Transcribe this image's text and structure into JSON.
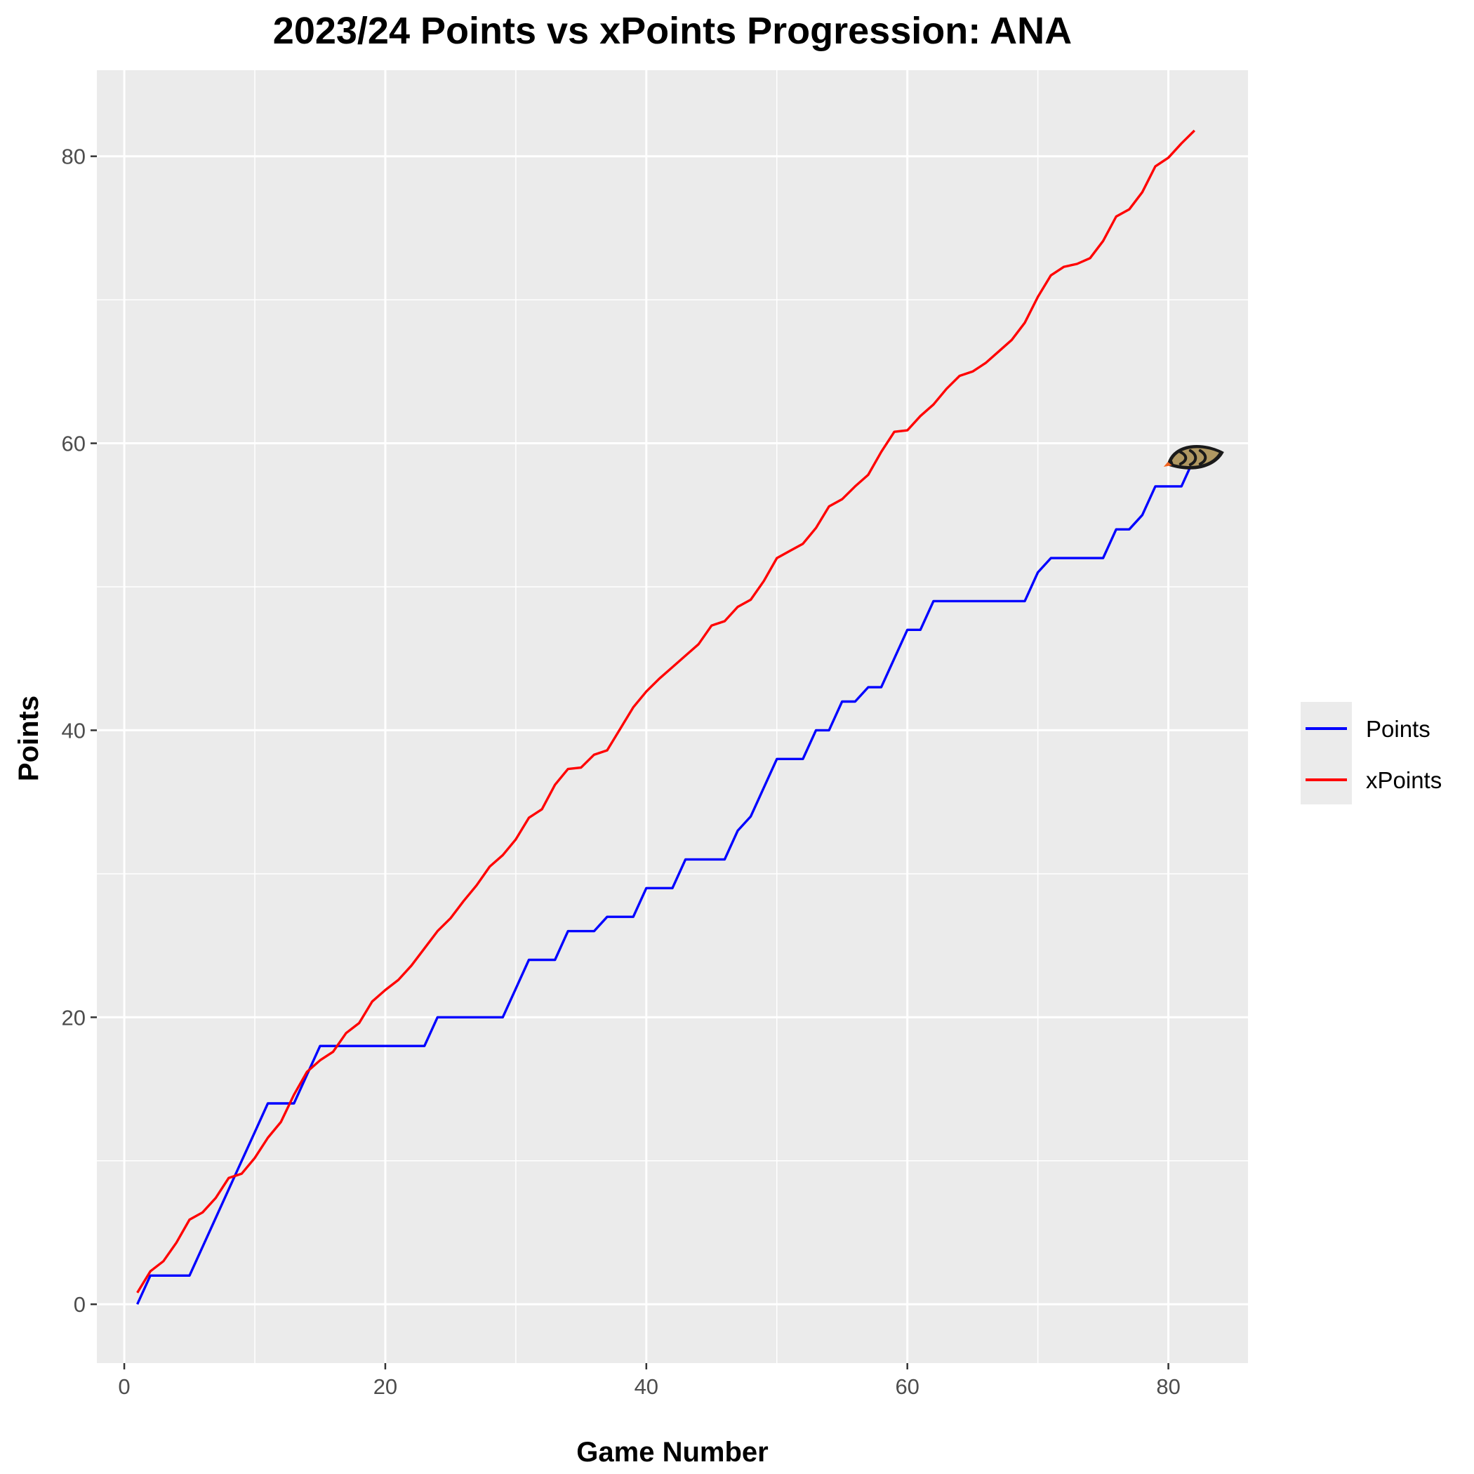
{
  "chart_data": {
    "type": "line",
    "title": "2023/24 Points vs xPoints Progression: ANA",
    "xlabel": "Game Number",
    "ylabel": "Points",
    "xlim": [
      -2.1,
      86.1
    ],
    "ylim": [
      -4.1,
      86.0
    ],
    "x_ticks": [
      0,
      20,
      40,
      60,
      80
    ],
    "y_ticks": [
      0,
      20,
      40,
      60,
      80
    ],
    "x_tick_labels": [
      "0",
      "20",
      "40",
      "60",
      "80"
    ],
    "y_tick_labels": [
      "0",
      "20",
      "40",
      "60",
      "80"
    ],
    "grid": true,
    "legend_position": "right",
    "logo": "anaheim-ducks-logo",
    "x": [
      1,
      2,
      3,
      4,
      5,
      6,
      7,
      8,
      9,
      10,
      11,
      12,
      13,
      14,
      15,
      16,
      17,
      18,
      19,
      20,
      21,
      22,
      23,
      24,
      25,
      26,
      27,
      28,
      29,
      30,
      31,
      32,
      33,
      34,
      35,
      36,
      37,
      38,
      39,
      40,
      41,
      42,
      43,
      44,
      45,
      46,
      47,
      48,
      49,
      50,
      51,
      52,
      53,
      54,
      55,
      56,
      57,
      58,
      59,
      60,
      61,
      62,
      63,
      64,
      65,
      66,
      67,
      68,
      69,
      70,
      71,
      72,
      73,
      74,
      75,
      76,
      77,
      78,
      79,
      80,
      81,
      82
    ],
    "series": [
      {
        "name": "Points",
        "color": "#0000FF",
        "values": [
          0,
          2,
          2,
          2,
          2,
          4,
          6,
          8,
          10,
          12,
          14,
          14,
          14,
          16,
          18,
          18,
          18,
          18,
          18,
          18,
          18,
          18,
          18,
          20,
          20,
          20,
          20,
          20,
          20,
          22,
          24,
          24,
          24,
          26,
          26,
          26,
          27,
          27,
          27,
          29,
          29,
          29,
          31,
          31,
          31,
          31,
          33,
          34,
          36,
          38,
          38,
          38,
          40,
          40,
          42,
          42,
          43,
          43,
          45,
          47,
          47,
          49,
          49,
          49,
          49,
          49,
          49,
          49,
          49,
          51,
          52,
          52,
          52,
          52,
          52,
          54,
          54,
          55,
          57,
          57,
          57,
          59
        ]
      },
      {
        "name": "xPoints",
        "color": "#FF0000",
        "values": [
          0.8,
          2.3,
          3.0,
          4.3,
          5.9,
          6.4,
          7.4,
          8.8,
          9.1,
          10.2,
          11.6,
          12.7,
          14.6,
          16.2,
          17.0,
          17.6,
          18.9,
          19.6,
          21.1,
          21.9,
          22.6,
          23.6,
          24.8,
          26.0,
          26.9,
          28.1,
          29.2,
          30.5,
          31.3,
          32.4,
          33.9,
          34.5,
          36.2,
          37.3,
          37.4,
          38.3,
          38.6,
          40.1,
          41.6,
          42.7,
          43.6,
          44.4,
          45.2,
          46.0,
          47.3,
          47.6,
          48.6,
          49.1,
          50.4,
          52.0,
          52.5,
          53.0,
          54.1,
          55.6,
          56.1,
          57.0,
          57.8,
          59.4,
          60.8,
          60.9,
          61.9,
          62.7,
          63.8,
          64.7,
          65.0,
          65.6,
          66.4,
          67.2,
          68.4,
          70.2,
          71.7,
          72.3,
          72.5,
          72.9,
          74.1,
          75.8,
          76.3,
          77.5,
          79.3,
          79.9,
          80.9,
          81.8
        ]
      }
    ]
  }
}
